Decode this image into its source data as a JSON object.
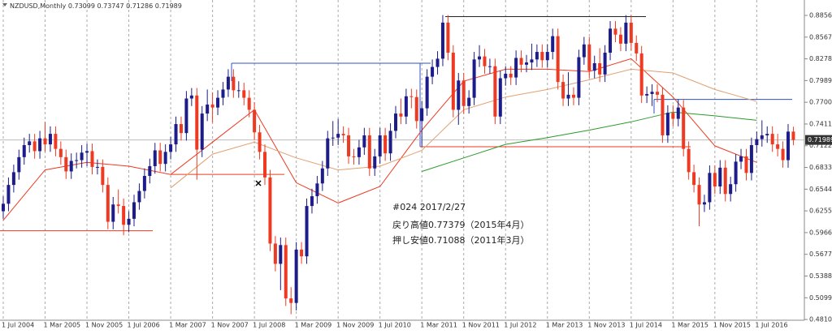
{
  "chart_data": {
    "type": "candlestick",
    "title": "NZDUSD,Monthly",
    "categories": [
      "1 Jul 2004",
      null,
      null,
      null,
      null,
      null,
      null,
      null,
      "1 Mar 2005",
      null,
      null,
      null,
      null,
      null,
      null,
      null,
      "1 Nov 2005",
      null,
      null,
      null,
      null,
      null,
      null,
      null,
      "1 Jul 2006",
      null,
      null,
      null,
      null,
      null,
      null,
      null,
      "1 Mar 2007",
      null,
      null,
      null,
      null,
      null,
      null,
      null,
      "1 Nov 2007",
      null,
      null,
      null,
      null,
      null,
      null,
      null,
      "1 Jul 2008",
      null,
      null,
      null,
      null,
      null,
      null,
      null,
      "1 Mar 2009",
      null,
      null,
      null,
      null,
      null,
      null,
      null,
      "1 Nov 2009",
      null,
      null,
      null,
      null,
      null,
      null,
      null,
      "1 Jul 2010",
      null,
      null,
      null,
      null,
      null,
      null,
      null,
      "1 Mar 2011",
      null,
      null,
      null,
      null,
      null,
      null,
      null,
      "1 Nov 2011",
      null,
      null,
      null,
      null,
      null,
      null,
      null,
      "1 Jul 2012",
      null,
      null,
      null,
      null,
      null,
      null,
      null,
      "1 Mar 2013",
      null,
      null,
      null,
      null,
      null,
      null,
      null,
      "1 Nov 2013",
      null,
      null,
      null,
      null,
      null,
      null,
      null,
      "1 Jul 2014",
      null,
      null,
      null,
      null,
      null,
      null,
      null,
      "1 Mar 2015",
      null,
      null,
      null,
      null,
      null,
      null,
      null,
      "1 Nov 2015",
      null,
      null,
      null,
      null,
      null,
      null,
      null,
      "1 Jul 2016",
      null,
      null,
      null,
      null,
      null,
      null,
      null
    ],
    "open": [
      0.625,
      0.635,
      0.66,
      0.677,
      0.697,
      0.713,
      0.718,
      0.705,
      0.722,
      0.714,
      0.728,
      0.708,
      0.697,
      0.678,
      0.692,
      0.693,
      0.703,
      0.705,
      0.684,
      0.684,
      0.66,
      0.611,
      0.634,
      0.632,
      0.607,
      0.615,
      0.637,
      0.652,
      0.672,
      0.685,
      0.706,
      0.688,
      0.704,
      0.714,
      0.741,
      0.729,
      0.775,
      0.779,
      0.707,
      0.755,
      0.767,
      0.763,
      0.776,
      0.787,
      0.804,
      0.786,
      0.786,
      0.776,
      0.76,
      0.73,
      0.704,
      0.67,
      0.582,
      0.555,
      0.58,
      0.509,
      0.503,
      0.574,
      0.565,
      0.632,
      0.645,
      0.662,
      0.682,
      0.722,
      0.723,
      0.728,
      0.726,
      0.698,
      0.697,
      0.71,
      0.726,
      0.682,
      0.698,
      0.726,
      0.702,
      0.732,
      0.755,
      0.751,
      0.778,
      0.777,
      0.745,
      0.762,
      0.804,
      0.817,
      0.828,
      0.876,
      0.836,
      0.76,
      0.799,
      0.765,
      0.776,
      0.827,
      0.831,
      0.818,
      0.818,
      0.751,
      0.802,
      0.808,
      0.803,
      0.829,
      0.82,
      0.823,
      0.827,
      0.837,
      0.826,
      0.837,
      0.858,
      0.797,
      0.775,
      0.78,
      0.776,
      0.83,
      0.847,
      0.812,
      0.822,
      0.807,
      0.836,
      0.868,
      0.86,
      0.848,
      0.876,
      0.849,
      0.835,
      0.779,
      0.781,
      0.784,
      0.78,
      0.726,
      0.756,
      0.748,
      0.763,
      0.708,
      0.677,
      0.66,
      0.634,
      0.637,
      0.676,
      0.658,
      0.683,
      0.648,
      0.661,
      0.691,
      0.698,
      0.676,
      0.713,
      0.721,
      0.726,
      0.728,
      0.714,
      0.708,
      0.693,
      0.73099
    ],
    "high": [
      0.645,
      0.67,
      0.687,
      0.707,
      0.723,
      0.728,
      0.728,
      0.732,
      0.744,
      0.738,
      0.738,
      0.718,
      0.707,
      0.702,
      0.703,
      0.713,
      0.715,
      0.715,
      0.694,
      0.694,
      0.67,
      0.644,
      0.654,
      0.642,
      0.625,
      0.647,
      0.662,
      0.682,
      0.695,
      0.716,
      0.716,
      0.714,
      0.724,
      0.751,
      0.751,
      0.785,
      0.789,
      0.789,
      0.765,
      0.787,
      0.783,
      0.786,
      0.797,
      0.814,
      0.814,
      0.798,
      0.796,
      0.786,
      0.77,
      0.74,
      0.714,
      0.68,
      0.592,
      0.59,
      0.59,
      0.524,
      0.584,
      0.584,
      0.642,
      0.655,
      0.672,
      0.692,
      0.732,
      0.745,
      0.748,
      0.738,
      0.736,
      0.708,
      0.72,
      0.736,
      0.736,
      0.708,
      0.736,
      0.736,
      0.742,
      0.765,
      0.775,
      0.788,
      0.788,
      0.787,
      0.772,
      0.814,
      0.827,
      0.838,
      0.886,
      0.886,
      0.846,
      0.809,
      0.809,
      0.786,
      0.837,
      0.846,
      0.841,
      0.828,
      0.828,
      0.812,
      0.818,
      0.818,
      0.839,
      0.839,
      0.833,
      0.848,
      0.847,
      0.847,
      0.847,
      0.868,
      0.868,
      0.807,
      0.81,
      0.79,
      0.84,
      0.857,
      0.857,
      0.832,
      0.842,
      0.846,
      0.878,
      0.878,
      0.87,
      0.886,
      0.886,
      0.859,
      0.845,
      0.791,
      0.794,
      0.794,
      0.79,
      0.766,
      0.766,
      0.774,
      0.773,
      0.718,
      0.687,
      0.67,
      0.647,
      0.686,
      0.686,
      0.693,
      0.693,
      0.671,
      0.701,
      0.708,
      0.708,
      0.723,
      0.731,
      0.746,
      0.738,
      0.738,
      0.728,
      0.718,
      0.741,
      0.73747
    ],
    "low": [
      0.615,
      0.625,
      0.65,
      0.667,
      0.687,
      0.703,
      0.695,
      0.695,
      0.704,
      0.704,
      0.698,
      0.687,
      0.668,
      0.668,
      0.682,
      0.683,
      0.685,
      0.674,
      0.674,
      0.65,
      0.601,
      0.601,
      0.622,
      0.593,
      0.597,
      0.605,
      0.627,
      0.642,
      0.662,
      0.675,
      0.678,
      0.678,
      0.694,
      0.704,
      0.719,
      0.719,
      0.765,
      0.667,
      0.697,
      0.745,
      0.743,
      0.753,
      0.766,
      0.777,
      0.776,
      0.776,
      0.766,
      0.75,
      0.72,
      0.694,
      0.66,
      0.572,
      0.545,
      0.52,
      0.499,
      0.488,
      0.493,
      0.555,
      0.555,
      0.622,
      0.635,
      0.652,
      0.672,
      0.712,
      0.713,
      0.716,
      0.688,
      0.687,
      0.687,
      0.7,
      0.672,
      0.672,
      0.688,
      0.692,
      0.692,
      0.722,
      0.741,
      0.741,
      0.762,
      0.735,
      0.711,
      0.752,
      0.794,
      0.807,
      0.818,
      0.826,
      0.75,
      0.74,
      0.755,
      0.755,
      0.766,
      0.817,
      0.808,
      0.808,
      0.741,
      0.741,
      0.792,
      0.793,
      0.793,
      0.81,
      0.81,
      0.813,
      0.817,
      0.816,
      0.816,
      0.827,
      0.787,
      0.765,
      0.765,
      0.766,
      0.766,
      0.82,
      0.802,
      0.802,
      0.797,
      0.797,
      0.826,
      0.85,
      0.838,
      0.838,
      0.839,
      0.825,
      0.769,
      0.769,
      0.765,
      0.77,
      0.716,
      0.716,
      0.738,
      0.738,
      0.698,
      0.667,
      0.65,
      0.605,
      0.624,
      0.627,
      0.648,
      0.648,
      0.638,
      0.638,
      0.651,
      0.681,
      0.666,
      0.666,
      0.703,
      0.711,
      0.716,
      0.704,
      0.698,
      0.683,
      0.683,
      0.71286
    ],
    "close": [
      0.635,
      0.66,
      0.677,
      0.697,
      0.713,
      0.718,
      0.705,
      0.722,
      0.714,
      0.728,
      0.708,
      0.697,
      0.678,
      0.692,
      0.693,
      0.703,
      0.705,
      0.684,
      0.684,
      0.66,
      0.611,
      0.634,
      0.632,
      0.607,
      0.615,
      0.637,
      0.652,
      0.672,
      0.685,
      0.706,
      0.688,
      0.704,
      0.714,
      0.741,
      0.729,
      0.775,
      0.779,
      0.707,
      0.755,
      0.767,
      0.763,
      0.776,
      0.787,
      0.804,
      0.786,
      0.786,
      0.776,
      0.76,
      0.73,
      0.704,
      0.67,
      0.582,
      0.555,
      0.58,
      0.509,
      0.503,
      0.574,
      0.565,
      0.632,
      0.645,
      0.662,
      0.682,
      0.722,
      0.723,
      0.728,
      0.726,
      0.698,
      0.697,
      0.71,
      0.726,
      0.682,
      0.698,
      0.726,
      0.702,
      0.732,
      0.755,
      0.751,
      0.778,
      0.777,
      0.745,
      0.762,
      0.804,
      0.817,
      0.828,
      0.876,
      0.836,
      0.76,
      0.799,
      0.765,
      0.776,
      0.827,
      0.831,
      0.818,
      0.818,
      0.751,
      0.802,
      0.808,
      0.803,
      0.829,
      0.82,
      0.823,
      0.827,
      0.837,
      0.826,
      0.837,
      0.858,
      0.797,
      0.775,
      0.78,
      0.776,
      0.83,
      0.847,
      0.812,
      0.822,
      0.807,
      0.836,
      0.868,
      0.86,
      0.848,
      0.876,
      0.849,
      0.835,
      0.779,
      0.781,
      0.784,
      0.78,
      0.726,
      0.756,
      0.748,
      0.763,
      0.708,
      0.677,
      0.66,
      0.634,
      0.637,
      0.676,
      0.658,
      0.683,
      0.648,
      0.661,
      0.691,
      0.698,
      0.676,
      0.713,
      0.721,
      0.726,
      0.728,
      0.714,
      0.708,
      0.693,
      0.731,
      0.71989
    ],
    "up_color": "#1c1c8a",
    "down_color": "#ee3a22",
    "moving_averages": {
      "x": [
        "1 Jul 2004",
        "1 Mar 2005",
        "1 Nov 2005",
        "1 Jul 2006",
        "1 Mar 2007",
        "1 Nov 2007",
        "1 Jul 2008",
        "1 Mar 2009",
        "1 Nov 2009",
        "1 Jul 2010",
        "1 Mar 2011",
        "1 Nov 2011",
        "1 Jul 2012",
        "1 Mar 2013",
        "1 Nov 2013",
        "1 Jul 2014",
        "1 Mar 2015",
        "1 Nov 2015",
        "1 Jul 2016"
      ],
      "series": [
        {
          "color": "#ee3a22",
          "values": [
            0.613,
            0.68,
            0.69,
            0.685,
            0.674,
            0.717,
            0.76,
            0.663,
            0.636,
            0.658,
            0.733,
            0.798,
            0.814,
            0.814,
            0.811,
            0.828,
            0.777,
            0.712,
            0.69
          ]
        },
        {
          "color": "#e0a070",
          "values": [
            null,
            null,
            null,
            null,
            0.656,
            0.701,
            0.717,
            0.696,
            0.68,
            0.685,
            0.706,
            0.76,
            0.777,
            0.787,
            0.8,
            0.814,
            0.809,
            0.787,
            0.771
          ]
        },
        {
          "color": "#2a9a2a",
          "values": [
            null,
            null,
            null,
            null,
            null,
            null,
            null,
            null,
            null,
            null,
            0.678,
            0.696,
            0.714,
            0.723,
            0.733,
            0.744,
            0.757,
            0.752,
            0.746
          ]
        }
      ]
    },
    "levels": [
      {
        "value": 0.599,
        "color": "#ee3a22"
      },
      {
        "value": 0.674,
        "color": "#ee3a22"
      },
      {
        "value": 0.822,
        "color": "#3050c0"
      },
      {
        "value": 0.884,
        "color": "#222222"
      },
      {
        "value": 0.71088,
        "color": "#ee3a22"
      },
      {
        "value": 0.77379,
        "color": "#3050c0"
      }
    ],
    "annotations": [
      "#024 2017/2/27",
      "戻り高値0.77379（2015年4月）",
      "押し安値0.71088（2011年3月）"
    ],
    "ylim": [
      0.48,
      0.9061
    ],
    "yticks": [
      {
        "value": 0.8856,
        "label": "0.88560"
      },
      {
        "value": 0.8567,
        "label": "0.85670"
      },
      {
        "value": 0.8278,
        "label": "0.82780"
      },
      {
        "value": 0.7989,
        "label": "0.79890"
      },
      {
        "value": 0.77,
        "label": "0.77000"
      },
      {
        "value": 0.7411,
        "label": "0.74110"
      },
      {
        "value": 0.7122,
        "label": "0.71220"
      },
      {
        "value": 0.6833,
        "label": "0.68330"
      },
      {
        "value": 0.6544,
        "label": "0.65440"
      },
      {
        "value": 0.6255,
        "label": "0.62550"
      },
      {
        "value": 0.5966,
        "label": "0.59660"
      },
      {
        "value": 0.5677,
        "label": "0.56770"
      },
      {
        "value": 0.5388,
        "label": "0.53880"
      },
      {
        "value": 0.5099,
        "label": "0.50990"
      },
      {
        "value": 0.481,
        "label": "0.48100"
      }
    ],
    "grid": true
  }
}
